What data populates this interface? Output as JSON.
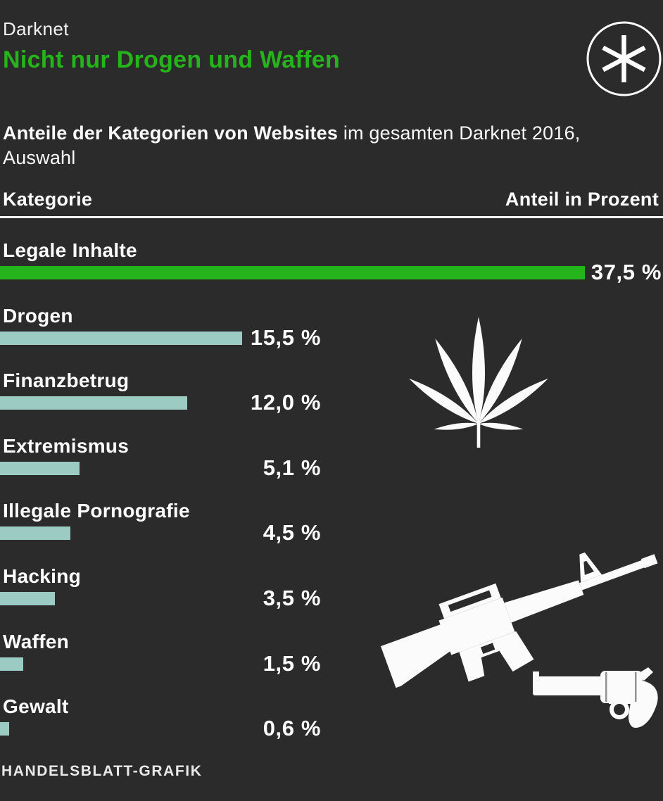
{
  "header": {
    "kicker": "Darknet",
    "title": "Nicht nur Drogen und Waffen",
    "title_color": "#25b41b",
    "logo": "handelsblatt-asterisk-logo"
  },
  "subtitle": {
    "bold": "Anteile der Kategorien von Websites",
    "rest": " im gesamten Darknet 2016, Auswahl"
  },
  "columns": {
    "left": "Kategorie",
    "right": "Anteil in Prozent"
  },
  "chart_data": {
    "type": "bar",
    "orientation": "horizontal",
    "title": "Nicht nur Drogen und Waffen",
    "subtitle": "Anteile der Kategorien von Websites im gesamten Darknet 2016, Auswahl",
    "categories": [
      "Legale Inhalte",
      "Drogen",
      "Finanzbetrug",
      "Extremismus",
      "Illegale Pornografie",
      "Hacking",
      "Waffen",
      "Gewalt"
    ],
    "values": [
      37.5,
      15.5,
      12.0,
      5.1,
      4.5,
      3.5,
      1.5,
      0.6
    ],
    "value_labels": [
      "37,5 %",
      "15,5 %",
      "12,0 %",
      "5,1 %",
      "4,5 %",
      "3,5 %",
      "1,5 %",
      "0,6 %"
    ],
    "unit": "Prozent",
    "xlim": [
      0,
      42.5
    ],
    "grid": false,
    "legend": false,
    "highlight_index": 0,
    "colors": {
      "highlight_bar": "#25b41b",
      "default_bar": "#9bcbc3",
      "background": "#2b2b2b",
      "text": "#ffffff"
    }
  },
  "icons": [
    {
      "name": "cannabis-leaf-icon",
      "represents": "Drogen"
    },
    {
      "name": "rifle-icon",
      "represents": "Waffen"
    },
    {
      "name": "revolver-icon",
      "represents": "Waffen"
    }
  ],
  "footer": {
    "credit": "HANDELSBLATT-GRAFIK"
  }
}
